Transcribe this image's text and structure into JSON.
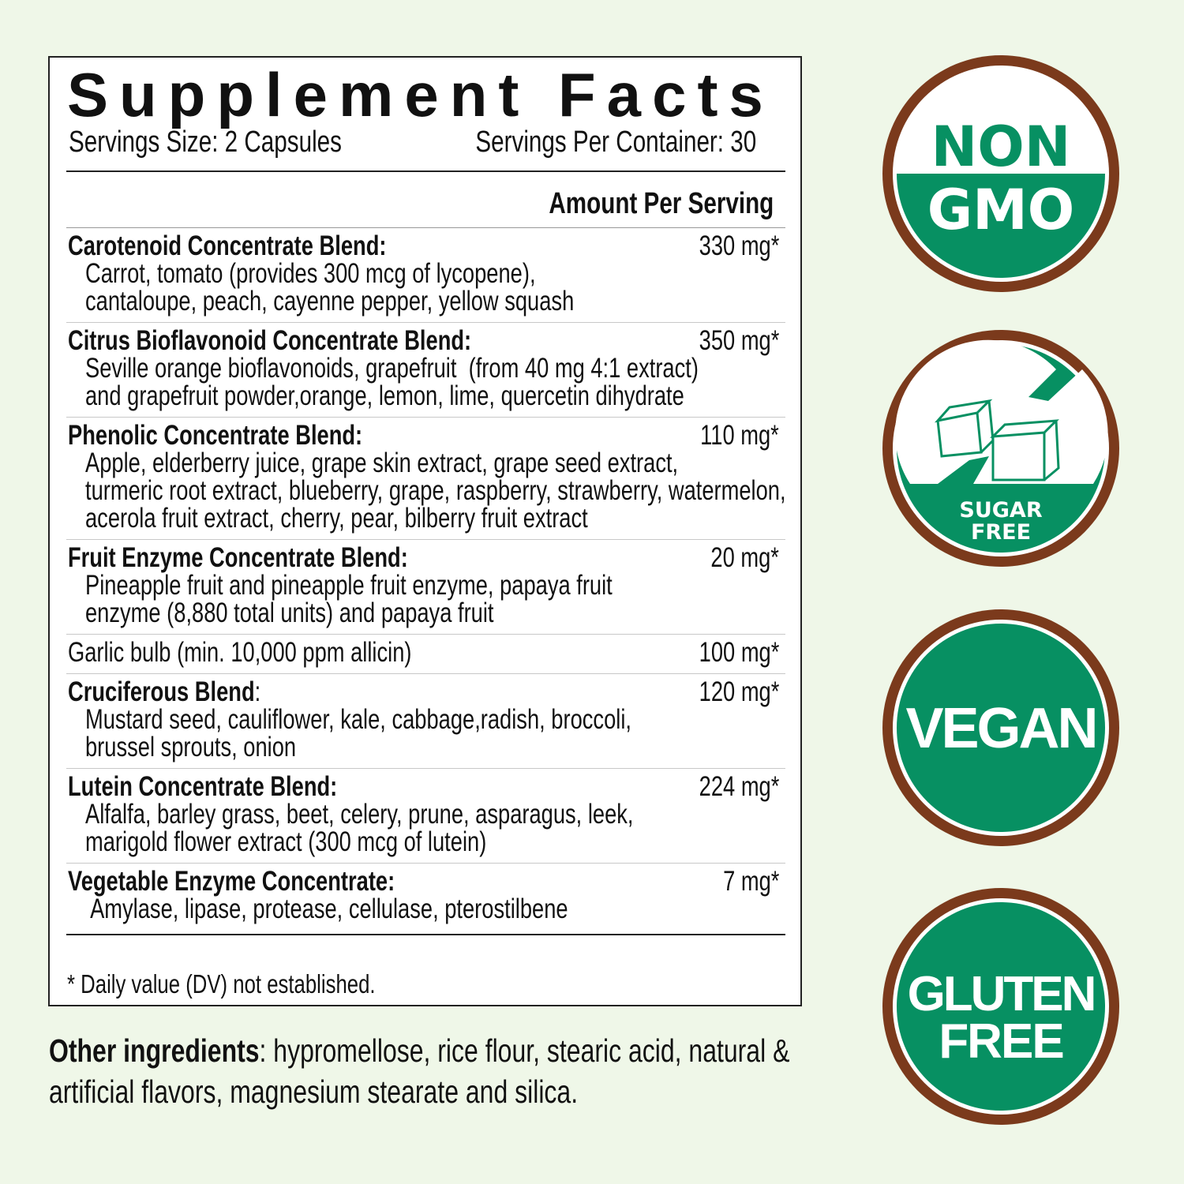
{
  "panel": {
    "title": "Supplement Facts",
    "serving_size": "Servings Size: 2 Capsules",
    "servings_per_container": "Servings Per Container: 30",
    "amount_header": "Amount Per Serving",
    "rows": [
      {
        "name": "Carotenoid Concentrate Blend:",
        "amount": "330 mg*",
        "desc": [
          "Carrot, tomato (provides 300 mcg of lycopene),",
          "cantaloupe, peach, cayenne pepper, yellow squash"
        ]
      },
      {
        "name": "Citrus Bioflavonoid Concentrate Blend:",
        "amount": "350 mg*",
        "desc": [
          "Seville orange bioflavonoids, grapefruit  (from 40 mg 4:1 extract)",
          "and grapefruit powder,orange, lemon, lime, quercetin dihydrate"
        ]
      },
      {
        "name": "Phenolic Concentrate Blend:",
        "amount": "110 mg*",
        "desc": [
          "Apple, elderberry juice, grape skin extract, grape seed extract,",
          "turmeric root extract, blueberry, grape, raspberry, strawberry, watermelon,",
          "acerola fruit extract, cherry, pear, bilberry fruit extract"
        ]
      },
      {
        "name": "Fruit Enzyme Concentrate Blend:",
        "amount": "20 mg*",
        "desc": [
          "Pineapple fruit and pineapple fruit enzyme, papaya fruit",
          "enzyme (8,880 total units) and papaya fruit"
        ]
      },
      {
        "plain": "Garlic bulb (min. 10,000 ppm allicin)",
        "amount": "100 mg*"
      },
      {
        "name": "Cruciferous Blend",
        "name_suffix": ":",
        "amount": "120 mg*",
        "desc": [
          "Mustard seed, cauliflower, kale, cabbage,radish, broccoli,",
          "brussel sprouts, onion"
        ]
      },
      {
        "name": "Lutein Concentrate Blend:",
        "amount": "224 mg*",
        "desc": [
          "Alfalfa, barley grass, beet, celery, prune, asparagus, leek,",
          "marigold flower extract (300 mcg of lutein)"
        ]
      },
      {
        "name": "Vegetable Enzyme Concentrate:",
        "amount": "7 mg*",
        "desc": [
          " Amylase, lipase, protease, cellulase, pterostilbene"
        ]
      }
    ],
    "footnote": "* Daily value (DV) not established."
  },
  "other_ingredients": {
    "label": "Other ingredients",
    "text": ": hypromellose, rice flour, stearic acid, natural &",
    "text2": "artificial flavors, magnesium stearate and silica."
  },
  "badges": [
    {
      "icon": "non-gmo-badge",
      "line1": "NON",
      "line2": "GMO"
    },
    {
      "icon": "sugar-free-badge",
      "line1": "SUGAR",
      "line2": "FREE"
    },
    {
      "icon": "vegan-badge",
      "line1": "VEGAN"
    },
    {
      "icon": "gluten-free-badge",
      "line1": "GLUTEN",
      "line2": "FREE"
    }
  ],
  "colors": {
    "background": "#eff7e8",
    "badge_green": "#079062",
    "badge_brown": "#7b3a1c"
  }
}
